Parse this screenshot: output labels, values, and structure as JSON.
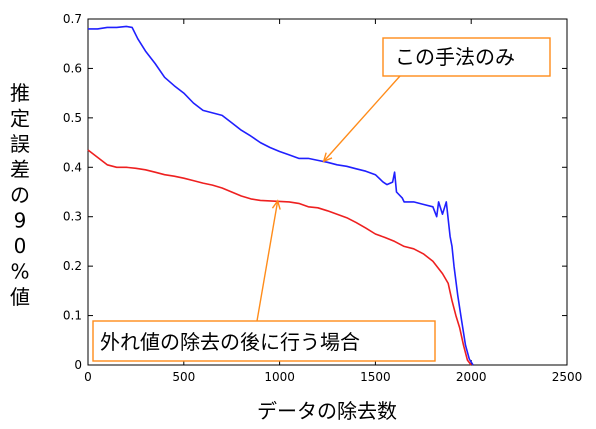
{
  "chart_data": {
    "type": "line",
    "xlabel": "データの除去数",
    "ylabel": "推定誤差の90%値",
    "xlim": [
      0,
      2500
    ],
    "ylim": [
      0,
      0.7
    ],
    "xticks": [
      "0",
      "500",
      "1000",
      "1500",
      "2000",
      "2500"
    ],
    "yticks": [
      "0",
      "0.1",
      "0.2",
      "0.3",
      "0.4",
      "0.5",
      "0.6",
      "0.7"
    ],
    "grid": false,
    "legend": "none",
    "series": [
      {
        "name": "この手法のみ",
        "color": "#2020ff",
        "x": [
          0,
          50,
          100,
          150,
          200,
          230,
          260,
          300,
          350,
          400,
          450,
          500,
          550,
          600,
          700,
          750,
          800,
          850,
          900,
          950,
          1000,
          1050,
          1100,
          1150,
          1200,
          1250,
          1300,
          1350,
          1400,
          1450,
          1500,
          1540,
          1560,
          1590,
          1600,
          1610,
          1640,
          1650,
          1700,
          1750,
          1800,
          1820,
          1830,
          1850,
          1870,
          1890,
          1900,
          1910,
          1930,
          1950,
          1970,
          1990,
          2010
        ],
        "y": [
          0.68,
          0.68,
          0.683,
          0.683,
          0.685,
          0.683,
          0.66,
          0.635,
          0.61,
          0.582,
          0.565,
          0.55,
          0.53,
          0.515,
          0.505,
          0.49,
          0.475,
          0.463,
          0.45,
          0.44,
          0.432,
          0.425,
          0.418,
          0.418,
          0.414,
          0.41,
          0.405,
          0.402,
          0.397,
          0.392,
          0.385,
          0.37,
          0.365,
          0.37,
          0.39,
          0.35,
          0.338,
          0.33,
          0.33,
          0.325,
          0.32,
          0.3,
          0.33,
          0.305,
          0.33,
          0.26,
          0.24,
          0.2,
          0.14,
          0.09,
          0.04,
          0.012,
          0.0
        ]
      },
      {
        "name": "外れ値の除去の後に行う場合",
        "color": "#ee2020",
        "x": [
          0,
          50,
          100,
          150,
          200,
          250,
          300,
          350,
          400,
          450,
          500,
          550,
          600,
          650,
          700,
          750,
          800,
          850,
          900,
          950,
          1000,
          1050,
          1100,
          1150,
          1200,
          1250,
          1300,
          1350,
          1400,
          1450,
          1500,
          1550,
          1600,
          1650,
          1700,
          1750,
          1800,
          1850,
          1880,
          1900,
          1920,
          1940,
          1960,
          1980,
          2000
        ],
        "y": [
          0.435,
          0.42,
          0.405,
          0.4,
          0.4,
          0.398,
          0.395,
          0.39,
          0.385,
          0.382,
          0.378,
          0.373,
          0.368,
          0.364,
          0.358,
          0.35,
          0.342,
          0.336,
          0.333,
          0.332,
          0.331,
          0.33,
          0.327,
          0.32,
          0.318,
          0.312,
          0.305,
          0.298,
          0.288,
          0.277,
          0.265,
          0.258,
          0.25,
          0.24,
          0.235,
          0.225,
          0.21,
          0.185,
          0.165,
          0.13,
          0.1,
          0.075,
          0.04,
          0.01,
          0.0
        ]
      }
    ],
    "annotations": [
      {
        "text": "この手法のみ",
        "series": 0,
        "point_x": 1230,
        "point_y": 0.412,
        "color": "#ff8c1a"
      },
      {
        "text": "外れ値の除去の後に行う場合",
        "series": 1,
        "point_x": 990,
        "point_y": 0.332,
        "color": "#ff8c1a"
      }
    ]
  }
}
